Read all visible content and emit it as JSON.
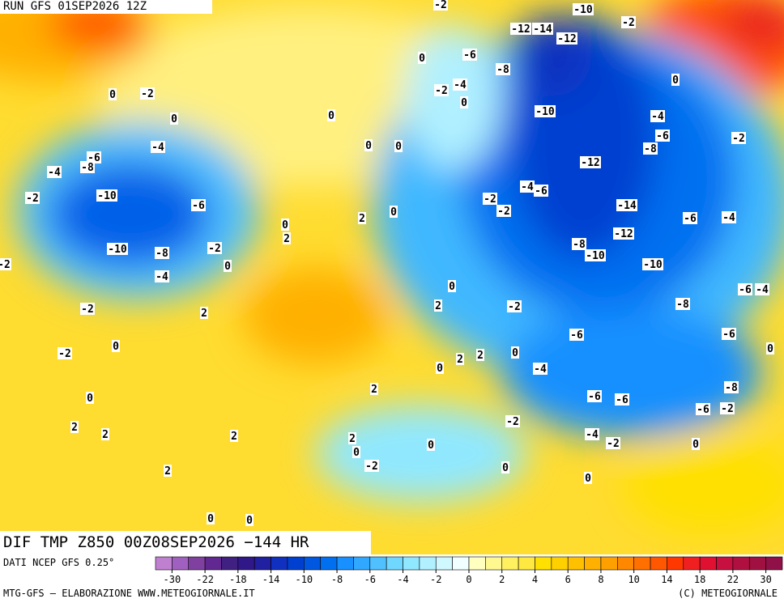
{
  "header": {
    "run": "RUN GFS 01SEP2026 12Z",
    "field": "DIF TMP Z850 00Z08SEP2026 −144 HR"
  },
  "footer": {
    "source": "DATI NCEP GFS 0.25°",
    "credit": "MTG-GFS — ELABORAZIONE WWW.METEOGIORNALE.IT",
    "copyright": "(C) METEOGIORNALE"
  },
  "colorbar": {
    "colors": [
      "#c080d0",
      "#a060c0",
      "#8040a0",
      "#602890",
      "#402080",
      "#301888",
      "#2020a0",
      "#1030c0",
      "#0040d0",
      "#0058e0",
      "#0070f0",
      "#1890ff",
      "#30a8ff",
      "#50c0ff",
      "#70d8ff",
      "#90e8ff",
      "#b0f0ff",
      "#d0f8ff",
      "#f0ffff",
      "#ffffc0",
      "#fff890",
      "#fff060",
      "#ffe840",
      "#ffe000",
      "#ffd000",
      "#ffc000",
      "#ffb000",
      "#ffa000",
      "#ff8800",
      "#ff7000",
      "#ff5800",
      "#ff3800",
      "#f02020",
      "#e01030",
      "#c81040",
      "#b01040",
      "#a01040",
      "#901048"
    ],
    "labels": [
      "-30",
      "-22",
      "-18",
      "-14",
      "-10",
      "-8",
      "-6",
      "-4",
      "-2",
      "0",
      "2",
      "4",
      "6",
      "8",
      "10",
      "14",
      "18",
      "22",
      "30"
    ]
  },
  "contour_labels": [
    "-2",
    "-10",
    "-2",
    "-12",
    "-14",
    "-12",
    "0",
    "-6",
    "-8",
    "0",
    "0",
    "-2",
    "-2",
    "-4",
    "0",
    "0",
    "-10",
    "-4",
    "0",
    "-2",
    "-6",
    "-8",
    "-4",
    "0",
    "0",
    "-6",
    "-8",
    "-12",
    "-4",
    "-2",
    "-10",
    "-6",
    "-4",
    "-6",
    "-2",
    "-2",
    "-14",
    "2",
    "0",
    "0",
    "2",
    "-6",
    "-4",
    "-12",
    "-2",
    "-10",
    "-8",
    "-8",
    "-10",
    "0",
    "-10",
    "-2",
    "-4",
    "0",
    "-6",
    "-4",
    "2",
    "-2",
    "-8",
    "-2",
    "2",
    "-6",
    "-6",
    "0",
    "-2",
    "0",
    "0",
    "2",
    "2",
    "0",
    "-4",
    "2",
    "0",
    "-8",
    "-6",
    "-6",
    "-6",
    "-2",
    "2",
    "2",
    "-2",
    "2",
    "2",
    "-4",
    "-2",
    "0",
    "0",
    "0",
    "-2",
    "2",
    "0",
    "0",
    "0",
    "0"
  ]
}
